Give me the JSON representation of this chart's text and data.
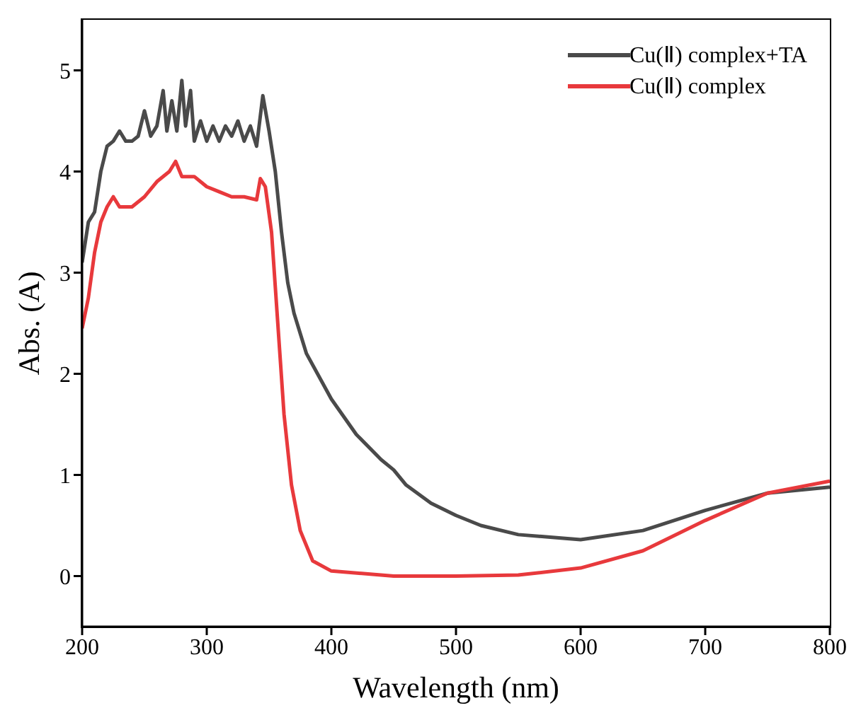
{
  "chart_data": {
    "type": "line",
    "xlabel": "Wavelength (nm)",
    "ylabel": "Abs. (A)",
    "xlim": [
      200,
      800
    ],
    "xticks": [
      200,
      300,
      400,
      500,
      600,
      700,
      800
    ],
    "ylim": [
      -0.5,
      5.5
    ],
    "yticks": [
      0,
      1,
      2,
      3,
      4,
      5
    ],
    "grid": false,
    "legend": "top right",
    "marker": "none",
    "line_style": "solid",
    "series": [
      {
        "name": "Cu(Ⅱ) complex+TA",
        "color": "#4a4a4a",
        "x": [
          200,
          205,
          210,
          215,
          220,
          225,
          230,
          235,
          240,
          245,
          250,
          255,
          260,
          265,
          268,
          272,
          276,
          280,
          283,
          287,
          290,
          295,
          300,
          305,
          310,
          315,
          320,
          325,
          330,
          335,
          340,
          345,
          350,
          355,
          360,
          365,
          370,
          380,
          400,
          420,
          440,
          450,
          460,
          480,
          500,
          520,
          550,
          600,
          650,
          700,
          750,
          800
        ],
        "values": [
          3.1,
          3.5,
          3.6,
          4.0,
          4.25,
          4.3,
          4.4,
          4.3,
          4.3,
          4.35,
          4.6,
          4.35,
          4.45,
          4.8,
          4.4,
          4.7,
          4.4,
          4.9,
          4.45,
          4.8,
          4.3,
          4.5,
          4.3,
          4.45,
          4.3,
          4.45,
          4.35,
          4.5,
          4.3,
          4.45,
          4.25,
          4.75,
          4.4,
          4.0,
          3.4,
          2.9,
          2.6,
          2.2,
          1.75,
          1.4,
          1.15,
          1.05,
          0.9,
          0.72,
          0.6,
          0.5,
          0.41,
          0.36,
          0.45,
          0.65,
          0.82,
          0.88
        ]
      },
      {
        "name": "Cu(Ⅱ) complex",
        "color": "#e8393c",
        "x": [
          200,
          205,
          210,
          215,
          220,
          225,
          230,
          240,
          250,
          260,
          270,
          275,
          280,
          290,
          300,
          310,
          320,
          330,
          340,
          343,
          347,
          352,
          357,
          362,
          368,
          375,
          385,
          400,
          450,
          500,
          550,
          600,
          650,
          700,
          750,
          800
        ],
        "values": [
          2.45,
          2.75,
          3.2,
          3.5,
          3.65,
          3.75,
          3.65,
          3.65,
          3.75,
          3.9,
          4.0,
          4.1,
          3.95,
          3.95,
          3.85,
          3.8,
          3.75,
          3.75,
          3.72,
          3.93,
          3.85,
          3.4,
          2.5,
          1.6,
          0.9,
          0.45,
          0.15,
          0.05,
          0.0,
          0.0,
          0.01,
          0.08,
          0.25,
          0.55,
          0.82,
          0.94
        ]
      }
    ]
  }
}
